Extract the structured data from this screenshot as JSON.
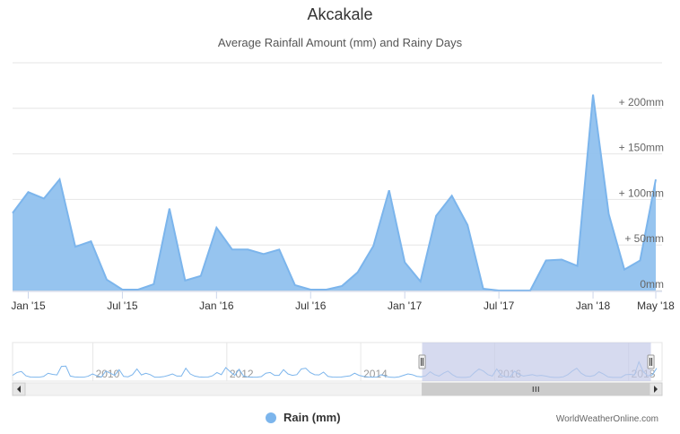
{
  "title": "Akcakale",
  "subtitle": "Average Rainfall Amount (mm) and Rainy Days",
  "credit": "WorldWeatherOnline.com",
  "colors": {
    "series_fill": "#90c1ee",
    "series_line": "#7cb5ec",
    "gridline": "#e6e6e6",
    "navigator_mask": "#c4cbe8",
    "scrollbar_bg": "#f2f2f2",
    "scrollbar_thumb": "#cccccc"
  },
  "chart_data": {
    "type": "area",
    "title": "Akcakale",
    "subtitle": "Average Rainfall Amount (mm) and Rainy Days",
    "x_tick_labels": [
      "Jan '15",
      "Jul '15",
      "Jan '16",
      "Jul '16",
      "Jan '17",
      "Jul '17",
      "Jan '18",
      "May '18"
    ],
    "x_tick_month_index": [
      0,
      6,
      12,
      18,
      24,
      30,
      36,
      40
    ],
    "y_tick_labels": [
      "0mm",
      "+ 50mm",
      "+ 100mm",
      "+ 150mm",
      "+ 200mm"
    ],
    "y_tick_values": [
      0,
      50,
      100,
      150,
      200
    ],
    "ylim": [
      0,
      250
    ],
    "y_axis_side": "right",
    "grid": true,
    "legend_position": "bottom-center",
    "series": [
      {
        "name": "Rain (mm)",
        "x_start": "2014-12",
        "x_end": "2018-05",
        "values": [
          85,
          108,
          101,
          122,
          48,
          54,
          12,
          1,
          1,
          7,
          90,
          11,
          16,
          69,
          45,
          45,
          40,
          45,
          6,
          1,
          1,
          5,
          20,
          49,
          110,
          31,
          10,
          82,
          104,
          72,
          2,
          0,
          0,
          0,
          33,
          34,
          27,
          215,
          84,
          23,
          33,
          122
        ]
      }
    ],
    "navigator": {
      "x_tick_labels": [
        "2010",
        "2012",
        "2014",
        "2016",
        "2018"
      ],
      "x_tick_years": [
        2010,
        2012,
        2014,
        2016,
        2018
      ],
      "xlim_years": [
        2008.8,
        2018.5
      ],
      "selected_range": [
        "2014-12",
        "2018-05"
      ],
      "values": [
        15,
        35,
        42,
        12,
        3,
        2,
        2,
        8,
        30,
        22,
        18,
        78,
        80,
        10,
        4,
        2,
        2,
        9,
        25,
        12,
        3,
        45,
        30,
        15,
        55,
        8,
        5,
        20,
        60,
        18,
        30,
        20,
        2,
        2,
        6,
        14,
        25,
        10,
        10,
        65,
        25,
        10,
        4,
        2,
        3,
        12,
        35,
        20,
        70,
        40,
        15,
        58,
        10,
        4,
        2,
        2,
        6,
        30,
        35,
        15,
        15,
        55,
        25,
        15,
        20,
        60,
        65,
        35,
        20,
        18,
        38,
        8,
        3,
        2,
        3,
        8,
        12,
        30,
        15,
        8,
        4,
        2,
        3,
        20,
        8,
        2,
        1,
        5,
        15,
        25,
        20,
        8,
        5,
        12,
        40,
        20,
        10,
        30,
        45,
        20,
        3,
        1,
        1,
        5,
        35,
        60,
        45,
        20,
        10,
        60,
        15,
        5,
        5,
        45,
        22,
        10,
        15,
        20,
        12,
        15,
        10,
        3,
        1,
        1,
        5,
        20,
        45,
        65,
        30,
        12,
        8,
        15,
        40,
        25,
        5,
        1,
        1,
        1,
        20,
        22,
        18,
        110,
        40,
        12,
        18,
        65
      ]
    }
  }
}
